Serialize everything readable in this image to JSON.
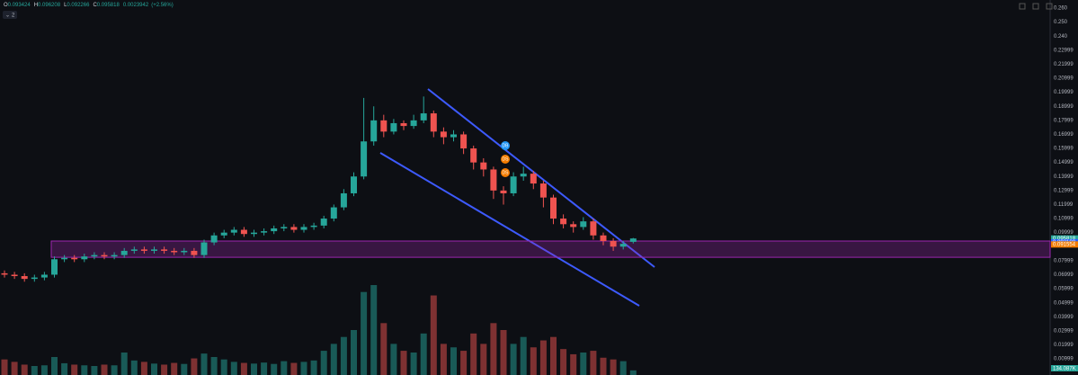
{
  "header": {
    "items": [
      {
        "key": "O",
        "value": 0.093424
      },
      {
        "key": "H",
        "value": 0.096208
      },
      {
        "key": "L",
        "value": 0.092266
      },
      {
        "key": "C",
        "value": 0.095818
      }
    ],
    "change": 0.0023942,
    "change_pct": "(+2.56%)",
    "indicators": "2"
  },
  "chart_data": {
    "type": "candlestick",
    "up_color": "#26a69a",
    "down_color": "#ef5350",
    "ylim": [
      -0.0015,
      0.2658
    ],
    "yticks": [
      {
        "value": 0.26,
        "label": "0.260"
      },
      {
        "value": 0.25,
        "label": "0.250"
      },
      {
        "value": 0.24,
        "label": "0.240"
      },
      0.22999,
      0.21999,
      0.20999,
      0.19999,
      0.18999,
      0.17999,
      0.16999,
      0.15999,
      0.14999,
      0.13999,
      0.12999,
      0.11999,
      0.10999,
      0.09999,
      0.07999,
      0.06999,
      0.05999,
      0.04999,
      0.03999,
      0.02999,
      0.01999,
      0.00999
    ],
    "open": [
      0.071,
      0.07,
      0.069,
      0.067,
      0.068,
      0.07,
      0.081,
      0.082,
      0.081,
      0.083,
      0.084,
      0.083,
      0.084,
      0.087,
      0.088,
      0.087,
      0.088,
      0.087,
      0.086,
      0.087,
      0.084,
      0.093,
      0.098,
      0.1,
      0.102,
      0.099,
      0.1,
      0.101,
      0.103,
      0.104,
      0.102,
      0.104,
      0.105,
      0.11,
      0.118,
      0.128,
      0.14,
      0.165,
      0.18,
      0.172,
      0.178,
      0.176,
      0.18,
      0.185,
      0.172,
      0.168,
      0.17,
      0.16,
      0.15,
      0.145,
      0.13,
      0.128,
      0.14,
      0.142,
      0.135,
      0.125,
      0.11,
      0.106,
      0.104,
      0.108,
      0.098,
      0.094,
      0.09,
      0.093424
    ],
    "high": [
      0.073,
      0.072,
      0.071,
      0.07,
      0.072,
      0.083,
      0.084,
      0.084,
      0.085,
      0.086,
      0.086,
      0.086,
      0.089,
      0.09,
      0.09,
      0.09,
      0.09,
      0.089,
      0.089,
      0.089,
      0.095,
      0.1,
      0.102,
      0.104,
      0.104,
      0.102,
      0.103,
      0.105,
      0.106,
      0.106,
      0.106,
      0.107,
      0.112,
      0.12,
      0.131,
      0.143,
      0.196,
      0.19,
      0.184,
      0.181,
      0.18,
      0.184,
      0.197,
      0.187,
      0.175,
      0.173,
      0.172,
      0.162,
      0.153,
      0.147,
      0.133,
      0.143,
      0.147,
      0.144,
      0.137,
      0.127,
      0.113,
      0.108,
      0.111,
      0.11,
      0.1,
      0.096,
      0.094,
      0.096208
    ],
    "low": [
      0.068,
      0.067,
      0.065,
      0.065,
      0.066,
      0.068,
      0.079,
      0.079,
      0.079,
      0.081,
      0.081,
      0.081,
      0.082,
      0.085,
      0.085,
      0.085,
      0.085,
      0.084,
      0.084,
      0.082,
      0.082,
      0.091,
      0.096,
      0.098,
      0.097,
      0.097,
      0.098,
      0.099,
      0.101,
      0.1,
      0.1,
      0.102,
      0.103,
      0.108,
      0.116,
      0.126,
      0.138,
      0.162,
      0.168,
      0.17,
      0.173,
      0.174,
      0.178,
      0.168,
      0.163,
      0.165,
      0.156,
      0.145,
      0.14,
      0.124,
      0.12,
      0.126,
      0.137,
      0.131,
      0.118,
      0.106,
      0.103,
      0.1,
      0.102,
      0.095,
      0.091,
      0.087,
      0.088,
      0.092266
    ],
    "close": [
      0.07,
      0.069,
      0.067,
      0.068,
      0.07,
      0.081,
      0.082,
      0.081,
      0.083,
      0.084,
      0.083,
      0.084,
      0.087,
      0.088,
      0.087,
      0.088,
      0.087,
      0.086,
      0.087,
      0.084,
      0.093,
      0.098,
      0.1,
      0.102,
      0.099,
      0.1,
      0.101,
      0.103,
      0.104,
      0.102,
      0.104,
      0.105,
      0.11,
      0.118,
      0.128,
      0.14,
      0.165,
      0.18,
      0.172,
      0.178,
      0.176,
      0.18,
      0.185,
      0.172,
      0.168,
      0.17,
      0.16,
      0.15,
      0.145,
      0.13,
      0.128,
      0.14,
      0.142,
      0.135,
      0.125,
      0.11,
      0.106,
      0.104,
      0.108,
      0.098,
      0.094,
      0.09,
      0.092,
      0.095818
    ],
    "volume": [
      450000,
      380000,
      300000,
      260000,
      280000,
      520000,
      340000,
      300000,
      280000,
      260000,
      300000,
      280000,
      650000,
      420000,
      380000,
      330000,
      300000,
      350000,
      320000,
      480000,
      620000,
      520000,
      450000,
      380000,
      350000,
      330000,
      360000,
      320000,
      400000,
      350000,
      380000,
      420000,
      700000,
      900000,
      1100000,
      1300000,
      2400000,
      2600000,
      1500000,
      900000,
      700000,
      650000,
      1200000,
      2300000,
      900000,
      800000,
      700000,
      1200000,
      900000,
      1500000,
      1300000,
      900000,
      1100000,
      800000,
      1000000,
      1100000,
      750000,
      600000,
      650000,
      700000,
      500000,
      450000,
      400000,
      134087
    ],
    "volume_label": "134.087K",
    "zone": {
      "low": 0.0824,
      "high": 0.094,
      "color": "#9c27b0"
    },
    "price_tags": [
      {
        "value": 0.095818,
        "color": "#26a69a"
      },
      {
        "value": 0.093109,
        "color": "#2962ff"
      },
      {
        "value": 0.091554,
        "color": "#f57c00"
      }
    ],
    "signals": [
      {
        "label": "DB",
        "color": "#2196f3"
      },
      {
        "label": "DS",
        "color": "#f57c00"
      },
      {
        "label": "DS",
        "color": "#f57c00"
      }
    ]
  }
}
